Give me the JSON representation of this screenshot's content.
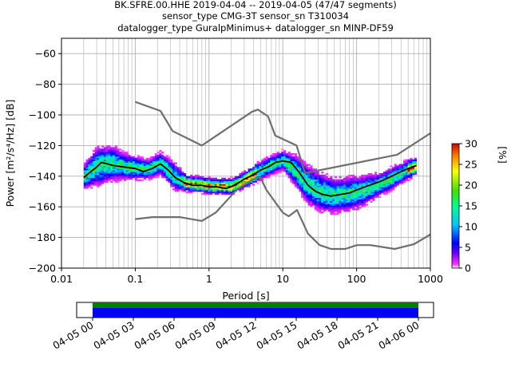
{
  "title": {
    "line1": "BK.SFRE.00.HHE   2019-04-04 -- 2019-04-05  (47/47 segments)",
    "line2": "sensor_type CMG-3T sensor_sn T310034",
    "line3": "datalogger_type GuralpMinimus+ datalogger_sn MINP-DF59"
  },
  "colorbar": {
    "label": "[%]",
    "ticks": [
      "0",
      "5",
      "10",
      "15",
      "20",
      "25",
      "30"
    ],
    "range": [
      0,
      30
    ]
  },
  "timeline": {
    "ticks": [
      "04-05 00",
      "04-05 03",
      "04-05 06",
      "04-05 09",
      "04-05 12",
      "04-05 15",
      "04-05 18",
      "04-05 21",
      "04-06 00"
    ],
    "bar_colors": {
      "top": "#008000",
      "bottom": "#0000ff"
    }
  },
  "chart_data": {
    "type": "line",
    "xscale": "log",
    "xlim": [
      0.01,
      1000
    ],
    "ylim": [
      -200,
      -50
    ],
    "grid": true,
    "xlabel": "Period [s]",
    "ylabel": "Power [m²/s⁴/Hz] [dB]",
    "xticks": [
      "0.01",
      "0.1",
      "1",
      "10",
      "100",
      "1000"
    ],
    "yticks": [
      "−60",
      "−80",
      "−100",
      "−120",
      "−140",
      "−160",
      "−180",
      "−200"
    ],
    "series": [
      {
        "role": "NHNM",
        "color": "#6e6e6e",
        "x": [
          0.1,
          0.22,
          0.32,
          0.8,
          3.8,
          4.6,
          6.3,
          7.9,
          15.4,
          20,
          354.8,
          1000
        ],
        "y": [
          -91.5,
          -97.4,
          -110.5,
          -120,
          -98,
          -96.5,
          -101,
          -113.5,
          -120,
          -138,
          -126,
          -112
        ]
      },
      {
        "role": "NLNM",
        "color": "#6e6e6e",
        "x": [
          0.1,
          0.17,
          0.4,
          0.8,
          1.24,
          2.4,
          4.3,
          5.0,
          6.0,
          10,
          12,
          15.6,
          21.9,
          31.6,
          45,
          70,
          101,
          154,
          328,
          600,
          1000
        ],
        "y": [
          -168,
          -166.7,
          -166.7,
          -169.2,
          -163.7,
          -148.6,
          -141.1,
          -141.1,
          -149,
          -163.8,
          -166.2,
          -162.1,
          -177.5,
          -185,
          -187.5,
          -187.5,
          -185,
          -185,
          -187.5,
          -184.4,
          -178
        ]
      },
      {
        "role": "mode",
        "color": "#000000",
        "x": [
          0.02,
          0.025,
          0.03,
          0.035,
          0.05,
          0.07,
          0.1,
          0.13,
          0.17,
          0.22,
          0.28,
          0.35,
          0.45,
          0.6,
          0.8,
          1.0,
          1.3,
          1.7,
          2.2,
          3.0,
          4.0,
          5.0,
          6.3,
          8.0,
          10,
          13,
          17,
          22,
          28,
          35,
          45,
          60,
          80,
          100,
          130,
          170,
          220,
          300,
          400,
          500,
          650
        ],
        "y": [
          -141,
          -137,
          -134,
          -131,
          -133,
          -134,
          -135,
          -137,
          -135,
          -132,
          -136,
          -141,
          -144,
          -146,
          -146,
          -147,
          -147,
          -148,
          -146,
          -142,
          -139,
          -136,
          -134,
          -131,
          -130,
          -131,
          -138,
          -146,
          -150,
          -152,
          -153,
          -152,
          -151,
          -149,
          -147,
          -145,
          -143,
          -140,
          -137,
          -135,
          -133
        ]
      }
    ],
    "histogram": {
      "colormap": "pqlx (0–30 %)",
      "x": [
        0.02,
        0.03,
        0.05,
        0.07,
        0.1,
        0.15,
        0.22,
        0.35,
        0.5,
        0.8,
        1.2,
        2,
        3,
        4.5,
        6.5,
        10,
        15,
        22,
        33,
        50,
        80,
        120,
        200,
        300,
        500,
        650
      ],
      "center": [
        -141,
        -134,
        -132,
        -134,
        -135,
        -136,
        -132,
        -141,
        -145,
        -146,
        -147,
        -147,
        -143,
        -138,
        -134,
        -130,
        -137,
        -146,
        -151,
        -153,
        -152,
        -150,
        -146,
        -142,
        -136,
        -134
      ],
      "spread": [
        6,
        10,
        9,
        7,
        6,
        5,
        6,
        7,
        4,
        4,
        4,
        4,
        4,
        5,
        5,
        5,
        8,
        10,
        10,
        9,
        9,
        8,
        6,
        6,
        5,
        4
      ]
    }
  }
}
